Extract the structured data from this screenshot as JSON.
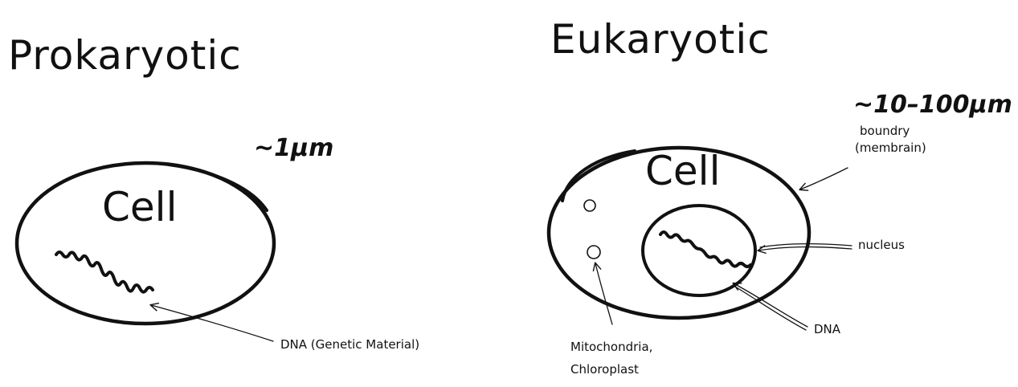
{
  "prokaryotic": {
    "title": "Prokaryotic",
    "size": "~1μm",
    "cell_label": "Cell",
    "dna_label": "DNA (Genetic Material)"
  },
  "eukaryotic": {
    "title": "Eukaryotic",
    "size": "~10–100μm",
    "cell_label": "Cell",
    "boundary_label_line1": "boundry",
    "boundary_label_line2": "(membrain)",
    "nucleus_label": "nucleus",
    "dna_label": "DNA",
    "organelle_label_line1": "Mitochondria,",
    "organelle_label_line2": "Chloroplast"
  }
}
